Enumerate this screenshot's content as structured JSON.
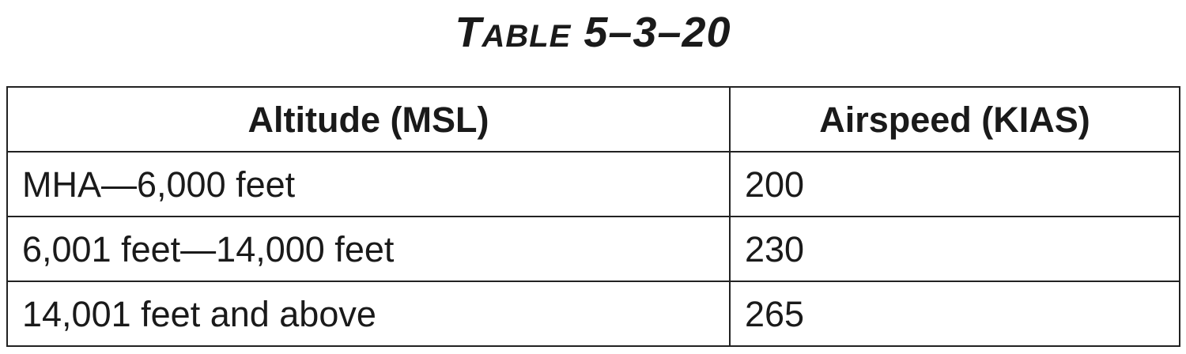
{
  "title": {
    "prefix_first": "T",
    "prefix_rest": "ABLE",
    "number": "5–3–20"
  },
  "table": {
    "headers": [
      "Altitude (MSL)",
      "Airspeed (KIAS)"
    ],
    "rows": [
      [
        "MHA—6,000 feet",
        "200"
      ],
      [
        "6,001 feet—14,000 feet",
        "230"
      ],
      [
        "14,001 feet and above",
        "265"
      ]
    ]
  }
}
